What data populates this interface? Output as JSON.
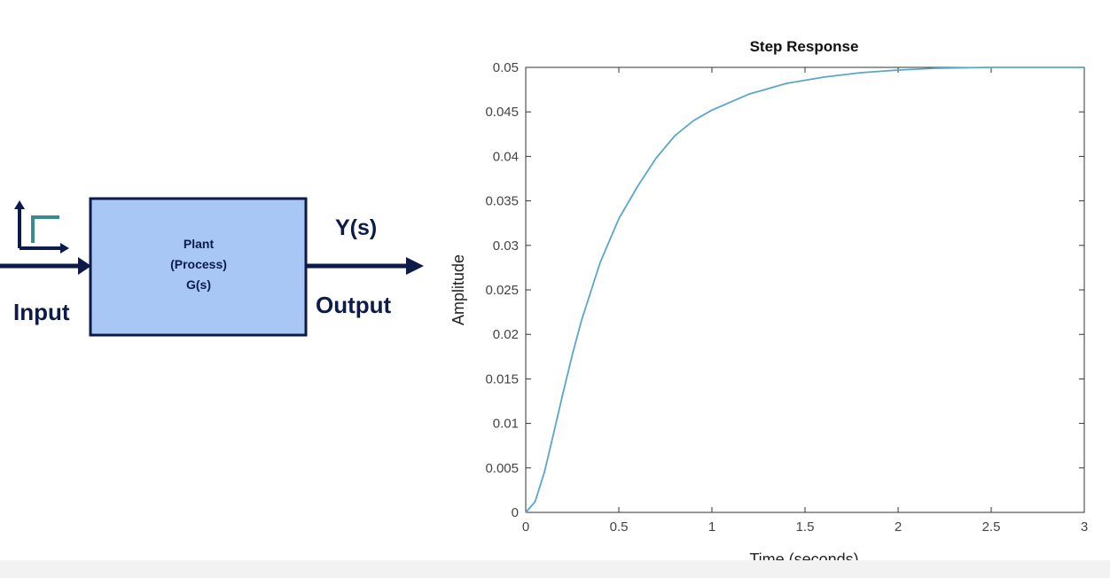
{
  "diagram": {
    "block_lines": [
      "Plant",
      "(Process)",
      "G(s)"
    ],
    "input_label": "Input",
    "output_signal": "Y(s)",
    "output_label": "Output",
    "step_icon": "step-input-icon",
    "colors": {
      "block_fill": "#a9c7f5",
      "block_border": "#0d1b4b",
      "arrow": "#0d1b4b",
      "step_accent": "#3a8c8c"
    }
  },
  "chart_data": {
    "type": "line",
    "title": "Step Response",
    "xlabel": "Time (seconds)",
    "ylabel": "Amplitude",
    "xlim": [
      0,
      3
    ],
    "ylim": [
      0,
      0.05
    ],
    "xticks": [
      0,
      0.5,
      1,
      1.5,
      2,
      2.5,
      3
    ],
    "xtick_labels": [
      "0",
      "0.5",
      "1",
      "1.5",
      "2",
      "2.5",
      "3"
    ],
    "yticks": [
      0,
      0.005,
      0.01,
      0.015,
      0.02,
      0.025,
      0.03,
      0.035,
      0.04,
      0.045,
      0.05
    ],
    "ytick_labels": [
      "0",
      "0.005",
      "0.01",
      "0.015",
      "0.02",
      "0.025",
      "0.03",
      "0.035",
      "0.04",
      "0.045",
      "0.05"
    ],
    "grid": false,
    "steady_state_value": 0.05,
    "series": [
      {
        "color": "#5aa6c9",
        "x": [
          0,
          0.05,
          0.1,
          0.15,
          0.2,
          0.25,
          0.3,
          0.4,
          0.5,
          0.6,
          0.7,
          0.8,
          0.9,
          1.0,
          1.2,
          1.4,
          1.6,
          1.8,
          2.0,
          2.2,
          2.5,
          2.8,
          3.0
        ],
        "y": [
          0,
          0.0012,
          0.0045,
          0.0089,
          0.0134,
          0.0177,
          0.0216,
          0.0281,
          0.033,
          0.0366,
          0.0398,
          0.0423,
          0.044,
          0.0452,
          0.047,
          0.0482,
          0.0489,
          0.0494,
          0.0497,
          0.0499,
          0.05,
          0.05,
          0.05
        ]
      }
    ]
  }
}
